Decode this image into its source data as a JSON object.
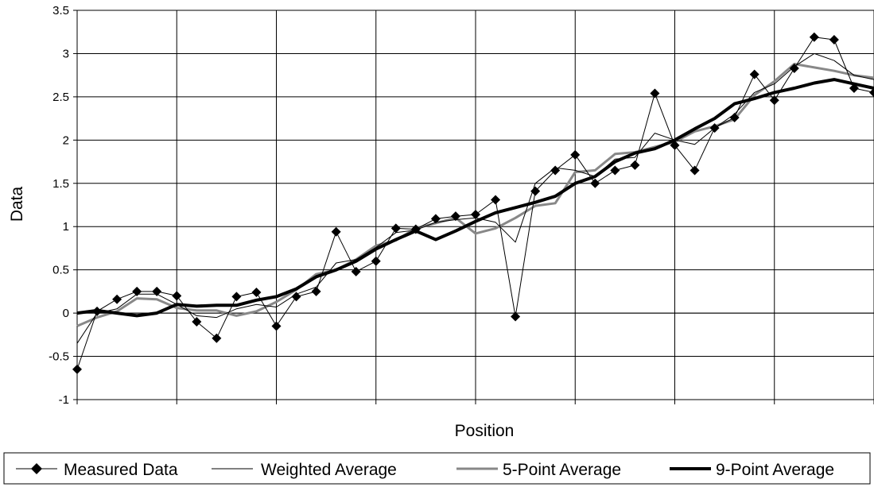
{
  "chart_data": {
    "type": "line",
    "title": "",
    "xlabel": "Position",
    "ylabel": "Data",
    "ylim": [
      -1,
      3.5
    ],
    "yticks": [
      -1,
      -0.5,
      0,
      0.5,
      1,
      1.5,
      2,
      2.5,
      3,
      3.5
    ],
    "ytick_labels": [
      "-1",
      "-0.5",
      "0",
      "0.5",
      "1",
      "1.5",
      "2",
      "2.5",
      "3",
      "3.5"
    ],
    "xlim": [
      1,
      41
    ],
    "x_gridlines_every": 5,
    "grid": true,
    "legend_position": "bottom",
    "x": [
      1,
      2,
      3,
      4,
      5,
      6,
      7,
      8,
      9,
      10,
      11,
      12,
      13,
      14,
      15,
      16,
      17,
      18,
      19,
      20,
      21,
      22,
      23,
      24,
      25,
      26,
      27,
      28,
      29,
      30,
      31,
      32,
      33,
      34,
      35,
      36,
      37,
      38,
      39,
      40,
      41
    ],
    "series": [
      {
        "name": "Measured Data",
        "color": "#000000",
        "marker": "diamond",
        "line": "thin",
        "values": [
          -0.65,
          0.02,
          0.16,
          0.25,
          0.25,
          0.2,
          -0.1,
          -0.29,
          0.19,
          0.24,
          -0.15,
          0.19,
          0.25,
          0.94,
          0.48,
          0.6,
          0.98,
          0.97,
          1.09,
          1.12,
          1.14,
          1.31,
          -0.04,
          1.41,
          1.65,
          1.83,
          1.5,
          1.65,
          1.71,
          2.54,
          1.94,
          1.65,
          2.14,
          2.26,
          2.76,
          2.46,
          2.83,
          3.19,
          3.16,
          2.6,
          2.55
        ]
      },
      {
        "name": "Weighted Average",
        "color": "#000000",
        "line": "thin",
        "values": [
          -0.35,
          0.0,
          0.05,
          0.22,
          0.22,
          0.1,
          -0.03,
          -0.05,
          0.05,
          0.1,
          0.07,
          0.22,
          0.3,
          0.58,
          0.62,
          0.76,
          0.93,
          0.96,
          1.05,
          1.08,
          1.1,
          1.05,
          0.82,
          1.5,
          1.68,
          1.65,
          1.58,
          1.78,
          1.8,
          2.08,
          2.0,
          1.95,
          2.14,
          2.3,
          2.55,
          2.65,
          2.85,
          3.0,
          2.92,
          2.75,
          2.7
        ]
      },
      {
        "name": "5-Point Average",
        "color": "#888888",
        "line": "medium",
        "values": [
          -0.15,
          -0.05,
          0.02,
          0.17,
          0.16,
          0.06,
          0.03,
          0.03,
          -0.03,
          0.02,
          0.13,
          0.27,
          0.45,
          0.5,
          0.62,
          0.78,
          0.84,
          0.98,
          1.04,
          1.1,
          0.92,
          0.98,
          1.1,
          1.24,
          1.27,
          1.63,
          1.65,
          1.84,
          1.86,
          1.92,
          1.98,
          2.1,
          2.16,
          2.24,
          2.52,
          2.68,
          2.88,
          2.84,
          2.8,
          2.75,
          2.72
        ]
      },
      {
        "name": "9-Point Average",
        "color": "#000000",
        "line": "thick",
        "values": [
          0.0,
          0.03,
          0.0,
          -0.03,
          0.0,
          0.1,
          0.08,
          0.09,
          0.09,
          0.15,
          0.19,
          0.28,
          0.42,
          0.5,
          0.6,
          0.74,
          0.85,
          0.95,
          0.85,
          0.95,
          1.06,
          1.16,
          1.22,
          1.28,
          1.35,
          1.5,
          1.58,
          1.75,
          1.85,
          1.9,
          2.0,
          2.13,
          2.25,
          2.42,
          2.48,
          2.55,
          2.6,
          2.66,
          2.7,
          2.65,
          2.6
        ]
      }
    ]
  }
}
